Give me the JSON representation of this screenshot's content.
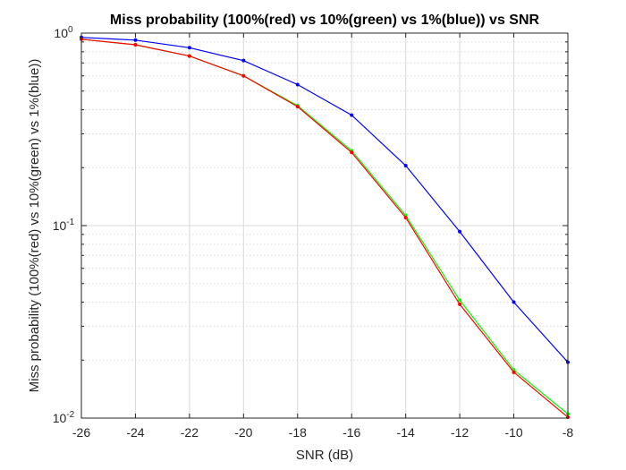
{
  "chart_data": {
    "type": "line",
    "title": "Miss probability (100%(red) vs 10%(green) vs 1%(blue)) vs SNR",
    "xlabel": "SNR (dB)",
    "ylabel": "Miss probability (100%(red) vs 10%(green) vs 1%(blue))",
    "xlim": [
      -26,
      -8
    ],
    "ylim": [
      0.01,
      1
    ],
    "yscale": "log",
    "grid": true,
    "xticks": [
      -26,
      -24,
      -22,
      -20,
      -18,
      -16,
      -14,
      -12,
      -10,
      -8
    ],
    "xtick_labels": [
      "-26",
      "-24",
      "-22",
      "-20",
      "-18",
      "-16",
      "-14",
      "-12",
      "-10",
      "-8"
    ],
    "yticks": [
      {
        "value": 1,
        "base": "10",
        "exp": "0"
      },
      {
        "value": 0.1,
        "base": "10",
        "exp": "-1"
      },
      {
        "value": 0.01,
        "base": "10",
        "exp": "-2"
      }
    ],
    "x": [
      -26,
      -24,
      -22,
      -20,
      -18,
      -16,
      -14,
      -12,
      -10,
      -8
    ],
    "series": [
      {
        "color": "#0000ff",
        "values": [
          0.95,
          0.92,
          0.84,
          0.72,
          0.54,
          0.375,
          0.205,
          0.093,
          0.04,
          0.0195
        ]
      },
      {
        "color": "#00ff00",
        "values": [
          0.93,
          0.87,
          0.76,
          0.6,
          0.42,
          0.245,
          0.113,
          0.041,
          0.0178,
          0.0105
        ]
      },
      {
        "color": "#ff0000",
        "values": [
          0.93,
          0.87,
          0.76,
          0.6,
          0.415,
          0.24,
          0.11,
          0.039,
          0.0173,
          0.0101
        ]
      }
    ]
  }
}
